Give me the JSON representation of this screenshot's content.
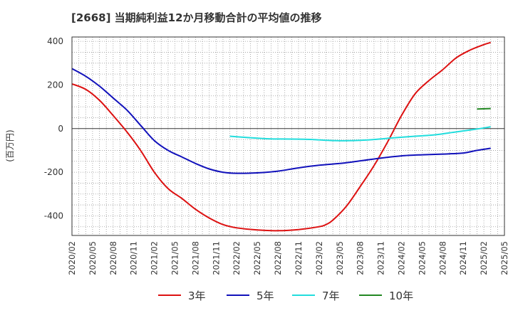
{
  "title": "[2668]  当期純利益12か月移動合計の平均値の推移",
  "chart_data": {
    "type": "line",
    "ylabel": "(百万円)",
    "xlabel": "",
    "ylim": [
      -490,
      420
    ],
    "yticks": [
      400,
      200,
      0,
      -200,
      -400
    ],
    "x_tick_labels": [
      "2020/02",
      "2020/05",
      "2020/08",
      "2020/11",
      "2021/02",
      "2021/05",
      "2021/08",
      "2021/11",
      "2022/02",
      "2022/05",
      "2022/08",
      "2022/11",
      "2023/02",
      "2023/05",
      "2023/08",
      "2023/11",
      "2024/02",
      "2024/05",
      "2024/08",
      "2024/11",
      "2025/02",
      "2025/05"
    ],
    "x_start": "2020/02",
    "x_end": "2025/05",
    "grid": true,
    "legend_position": "bottom",
    "series": [
      {
        "name": "3年",
        "color": "#dd1111",
        "points": [
          [
            "2020/02",
            205
          ],
          [
            "2020/04",
            180
          ],
          [
            "2020/06",
            130
          ],
          [
            "2020/08",
            60
          ],
          [
            "2020/10",
            -15
          ],
          [
            "2020/12",
            -100
          ],
          [
            "2021/02",
            -200
          ],
          [
            "2021/04",
            -275
          ],
          [
            "2021/06",
            -320
          ],
          [
            "2021/08",
            -370
          ],
          [
            "2021/10",
            -410
          ],
          [
            "2021/12",
            -440
          ],
          [
            "2022/02",
            -455
          ],
          [
            "2022/05",
            -465
          ],
          [
            "2022/08",
            -468
          ],
          [
            "2022/11",
            -463
          ],
          [
            "2023/02",
            -450
          ],
          [
            "2023/03",
            -440
          ],
          [
            "2023/04",
            -420
          ],
          [
            "2023/06",
            -355
          ],
          [
            "2023/08",
            -265
          ],
          [
            "2023/10",
            -170
          ],
          [
            "2023/12",
            -60
          ],
          [
            "2024/02",
            60
          ],
          [
            "2024/04",
            160
          ],
          [
            "2024/06",
            220
          ],
          [
            "2024/08",
            270
          ],
          [
            "2024/10",
            325
          ],
          [
            "2024/12",
            360
          ],
          [
            "2025/02",
            385
          ],
          [
            "2025/03",
            395
          ]
        ]
      },
      {
        "name": "5年",
        "color": "#1111bb",
        "points": [
          [
            "2020/02",
            275
          ],
          [
            "2020/04",
            240
          ],
          [
            "2020/06",
            195
          ],
          [
            "2020/08",
            140
          ],
          [
            "2020/10",
            85
          ],
          [
            "2020/12",
            15
          ],
          [
            "2021/02",
            -55
          ],
          [
            "2021/04",
            -100
          ],
          [
            "2021/06",
            -130
          ],
          [
            "2021/08",
            -160
          ],
          [
            "2021/10",
            -185
          ],
          [
            "2021/12",
            -200
          ],
          [
            "2022/02",
            -205
          ],
          [
            "2022/05",
            -203
          ],
          [
            "2022/08",
            -195
          ],
          [
            "2022/11",
            -180
          ],
          [
            "2023/02",
            -168
          ],
          [
            "2023/05",
            -160
          ],
          [
            "2023/08",
            -148
          ],
          [
            "2023/11",
            -135
          ],
          [
            "2024/02",
            -125
          ],
          [
            "2024/05",
            -120
          ],
          [
            "2024/08",
            -117
          ],
          [
            "2024/11",
            -112
          ],
          [
            "2025/01",
            -100
          ],
          [
            "2025/03",
            -90
          ]
        ]
      },
      {
        "name": "7年",
        "color": "#22dddd",
        "points": [
          [
            "2022/01",
            -35
          ],
          [
            "2022/04",
            -42
          ],
          [
            "2022/07",
            -47
          ],
          [
            "2022/10",
            -48
          ],
          [
            "2023/01",
            -50
          ],
          [
            "2023/04",
            -55
          ],
          [
            "2023/07",
            -55
          ],
          [
            "2023/10",
            -50
          ],
          [
            "2024/01",
            -42
          ],
          [
            "2024/04",
            -35
          ],
          [
            "2024/07",
            -28
          ],
          [
            "2024/10",
            -15
          ],
          [
            "2025/01",
            -2
          ],
          [
            "2025/03",
            8
          ]
        ]
      },
      {
        "name": "10年",
        "color": "#228822",
        "points": [
          [
            "2025/01",
            90
          ],
          [
            "2025/03",
            92
          ]
        ]
      }
    ]
  }
}
